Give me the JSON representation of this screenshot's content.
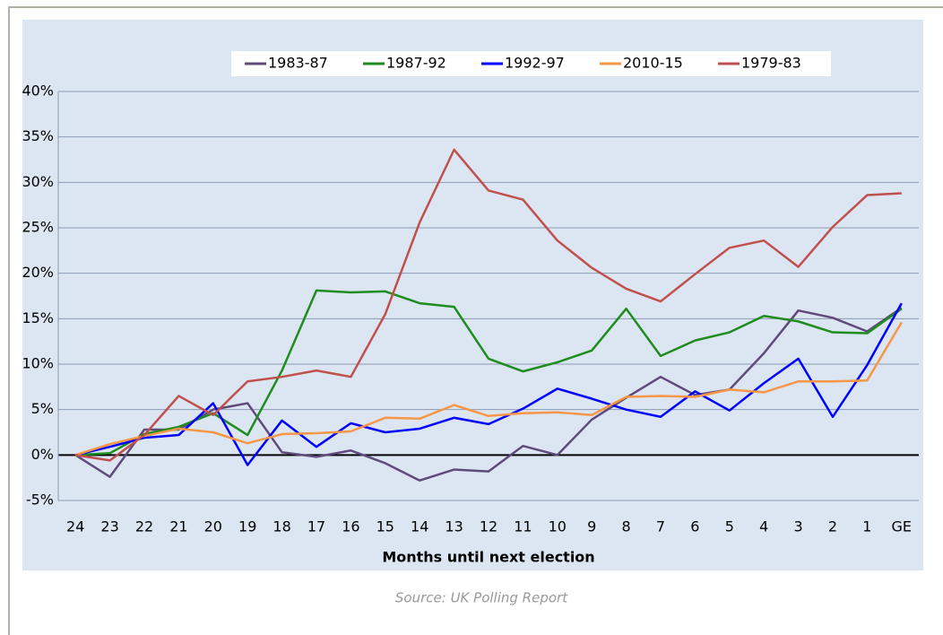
{
  "chart_data": {
    "type": "line",
    "x_label": "Months until next election",
    "categories": [
      "24",
      "23",
      "22",
      "21",
      "20",
      "19",
      "18",
      "17",
      "16",
      "15",
      "14",
      "13",
      "12",
      "11",
      "10",
      "9",
      "8",
      "7",
      "6",
      "5",
      "4",
      "3",
      "2",
      "1",
      "GE"
    ],
    "series": [
      {
        "name": "1983-87",
        "color": "#604a7b",
        "values": [
          0,
          -2.4,
          2.8,
          2.8,
          5,
          5.7,
          0.3,
          -0.2,
          0.5,
          -0.9,
          -2.8,
          -1.6,
          -1.8,
          1,
          0,
          3.9,
          6.3,
          8.6,
          6.6,
          7.2,
          11.2,
          15.9,
          15.1,
          13.6,
          16.2
        ]
      },
      {
        "name": "1987-92",
        "color": "#1e8c1e",
        "values": [
          0,
          0.2,
          2.3,
          3.1,
          4.6,
          2.2,
          9.3,
          18.1,
          17.9,
          18,
          16.7,
          16.3,
          10.6,
          9.2,
          10.2,
          11.5,
          16.1,
          10.9,
          12.6,
          13.5,
          15.3,
          14.7,
          13.5,
          13.4,
          16.1
        ]
      },
      {
        "name": "1992-97",
        "color": "#0000ff",
        "values": [
          0,
          0.9,
          1.9,
          2.2,
          5.7,
          -1.1,
          3.8,
          0.9,
          3.5,
          2.5,
          2.9,
          4.1,
          3.4,
          5.1,
          7.3,
          6.2,
          5,
          4.2,
          7,
          4.9,
          7.9,
          10.6,
          4.2,
          9.9,
          16.7
        ]
      },
      {
        "name": "2010-15",
        "color": "#f79646",
        "values": [
          0,
          1.2,
          2.1,
          2.9,
          2.5,
          1.3,
          2.3,
          2.4,
          2.6,
          4.1,
          4,
          5.5,
          4.3,
          4.6,
          4.7,
          4.4,
          6.4,
          6.5,
          6.4,
          7.2,
          6.9,
          8.1,
          8.1,
          8.2,
          14.6
        ]
      },
      {
        "name": "1979-83",
        "color": "#c0504d",
        "values": [
          0,
          -0.6,
          2.2,
          6.5,
          4.4,
          8.1,
          8.6,
          9.3,
          8.6,
          15.5,
          25.6,
          33.6,
          29.1,
          28.1,
          23.6,
          20.6,
          18.3,
          16.9,
          19.9,
          22.8,
          23.6,
          20.7,
          25.1,
          28.6,
          28.8
        ]
      }
    ],
    "ylim": [
      -5,
      40
    ],
    "yticks": [
      {
        "value": -5,
        "label": "-5%"
      },
      {
        "value": 0,
        "label": "0%"
      },
      {
        "value": 5,
        "label": "5%"
      },
      {
        "value": 10,
        "label": "10%"
      },
      {
        "value": 15,
        "label": "15%"
      },
      {
        "value": 20,
        "label": "20%"
      },
      {
        "value": 25,
        "label": "25%"
      },
      {
        "value": 30,
        "label": "30%"
      },
      {
        "value": 35,
        "label": "35%"
      },
      {
        "value": 40,
        "label": "40%"
      }
    ],
    "grid": true,
    "legend": "top"
  },
  "caption": "Source: UK Polling Report"
}
